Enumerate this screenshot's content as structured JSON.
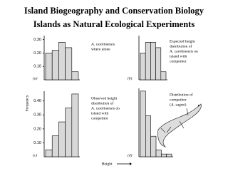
{
  "header": {
    "title": "Island Biogeography and Conservation Biology",
    "subtitle": "Islands as Natural Ecological Experiments"
  },
  "y_axis_label": "Frequency",
  "x_axis_label": "Height",
  "chart_data": [
    {
      "type": "bar",
      "panel_label": "(a)",
      "annotation": [
        "A. carolinensis",
        "where alone"
      ],
      "categories": [
        null,
        null,
        null,
        null,
        null
      ],
      "values": [
        0.2,
        0.22,
        0.28,
        0.24,
        0.06
      ],
      "color": "#d8d8d8",
      "ylim": [
        0,
        0.33
      ],
      "yticks": [
        {
          "value": 0.1,
          "label": "0.10"
        },
        {
          "value": 0.2,
          "label": "0.20"
        },
        {
          "value": 0.3,
          "label": "0.30"
        }
      ]
    },
    {
      "type": "bar",
      "panel_label": "(b)",
      "annotation": [
        "Expected height",
        "distribution of",
        "A. carolinensis on",
        "island with",
        "competitor"
      ],
      "categories": [
        null,
        null,
        null,
        null,
        null
      ],
      "values": [
        0.2,
        0.28,
        0.28,
        0.24,
        0.06
      ],
      "color": "#d8d8d8",
      "ylim": [
        0,
        0.33
      ]
    },
    {
      "type": "bar",
      "panel_label": "(c)",
      "annotation": [
        "Observed height",
        "distribution of",
        "A. carolinensis on",
        "island with",
        "competitor"
      ],
      "categories": [
        null,
        null,
        null,
        null,
        null
      ],
      "values": [
        0.05,
        0.15,
        0.25,
        0.35,
        0.45
      ],
      "color": "#d8d8d8",
      "ylim": [
        0,
        0.47
      ],
      "yticks": [
        {
          "value": 0.1,
          "label": "0.10"
        },
        {
          "value": 0.2,
          "label": "0.20"
        },
        {
          "value": 0.3,
          "label": "0.30"
        },
        {
          "value": 0.4,
          "label": "0.40"
        }
      ]
    },
    {
      "type": "bar",
      "panel_label": "(d)",
      "annotation": [
        "Distribution of",
        "competitor",
        "(A. sagrei)"
      ],
      "categories": [
        null,
        null,
        null,
        null,
        null,
        null
      ],
      "values": [
        0.48,
        0.3,
        0.15,
        0.05,
        0.02,
        0.02
      ],
      "color": "#d8d8d8",
      "ylim": [
        0,
        0.5
      ]
    }
  ]
}
